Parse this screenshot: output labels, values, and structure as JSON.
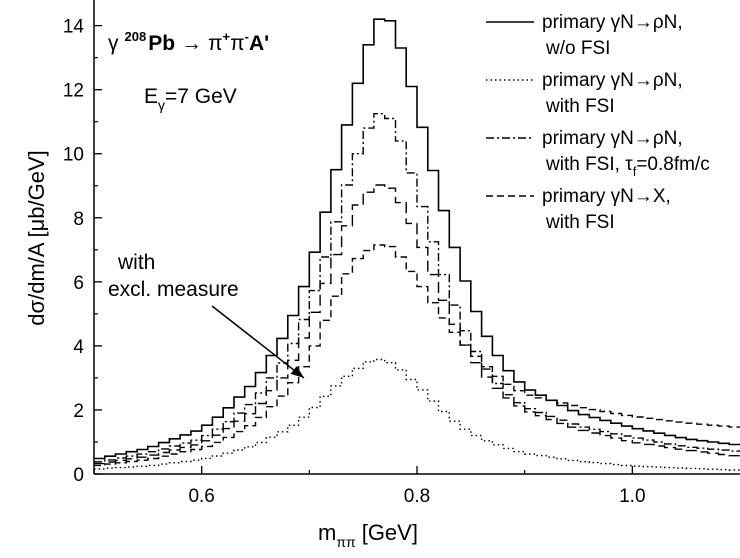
{
  "chart_data": {
    "type": "line",
    "title": "",
    "xlabel": "m",
    "xlabel_sub": "ππ",
    "xlabel_unit": "[GeV]",
    "ylabel": "dσ/dm/A [μb/GeV]",
    "xlim": [
      0.5,
      1.1
    ],
    "ylim": [
      0,
      14.8
    ],
    "x_ticks": [
      0.6,
      0.8,
      1.0
    ],
    "x_tick_labels": [
      "0.6",
      "0.8",
      "1.0"
    ],
    "y_ticks": [
      0,
      2,
      4,
      6,
      8,
      10,
      12,
      14
    ],
    "y_tick_labels": [
      "0",
      "2",
      "4",
      "6",
      "8",
      "10",
      "12",
      "14"
    ],
    "grid": false,
    "legend_position": "top-right",
    "reaction": {
      "gamma": "γ",
      "mass_number": "208",
      "nucleus": "Pb",
      "arrow": "→",
      "pi": "π",
      "plus": "+",
      "minus": "-",
      "residual": "A'"
    },
    "energy_label": {
      "E": "E",
      "sub": "γ",
      "value": "=7 GeV"
    },
    "annotation": {
      "line1": "with",
      "line2": "excl. measure",
      "arrow_to": [
        0.695,
        3.0
      ]
    },
    "peak_x": 0.77,
    "series": [
      {
        "name_line1": "primary γN→ρN,",
        "name_line2": "w/o FSI",
        "dash": "solid",
        "x": [
          0.5,
          0.55,
          0.6,
          0.62,
          0.65,
          0.68,
          0.7,
          0.72,
          0.74,
          0.76,
          0.77,
          0.78,
          0.8,
          0.82,
          0.84,
          0.86,
          0.88,
          0.9,
          0.95,
          1.0,
          1.05,
          1.1
        ],
        "values": [
          0.45,
          0.8,
          1.4,
          1.9,
          2.9,
          4.5,
          6.3,
          8.8,
          11.6,
          14.0,
          14.4,
          13.9,
          11.5,
          8.8,
          6.5,
          4.6,
          3.4,
          2.7,
          1.9,
          1.45,
          1.1,
          0.9
        ]
      },
      {
        "name_line1": "primary γN→ρN,",
        "name_line2": "with FSI",
        "dash": "dotted",
        "x": [
          0.5,
          0.55,
          0.6,
          0.62,
          0.65,
          0.68,
          0.7,
          0.72,
          0.74,
          0.76,
          0.77,
          0.78,
          0.8,
          0.82,
          0.84,
          0.86,
          0.88,
          0.9,
          0.95,
          1.0,
          1.05,
          1.1
        ],
        "values": [
          0.15,
          0.25,
          0.45,
          0.6,
          0.9,
          1.4,
          1.9,
          2.6,
          3.2,
          3.6,
          3.55,
          3.4,
          2.8,
          2.1,
          1.5,
          1.1,
          0.85,
          0.65,
          0.4,
          0.25,
          0.18,
          0.12
        ]
      },
      {
        "name_line1": "primary γN→ρN,",
        "name_line2": "with FSI, τ",
        "name_sub": "f",
        "name_line2_end": "=0.8fm/c",
        "dash": "dashdot",
        "x": [
          0.5,
          0.55,
          0.6,
          0.62,
          0.65,
          0.68,
          0.7,
          0.72,
          0.74,
          0.76,
          0.77,
          0.78,
          0.8,
          0.82,
          0.84,
          0.86,
          0.88,
          0.9,
          0.95,
          1.0,
          1.05,
          1.1
        ],
        "values": [
          0.35,
          0.65,
          1.1,
          1.5,
          2.3,
          3.7,
          5.2,
          7.3,
          9.6,
          11.2,
          11.3,
          10.9,
          8.9,
          6.7,
          4.8,
          3.5,
          2.6,
          2.1,
          1.5,
          1.15,
          0.85,
          0.7
        ]
      },
      {
        "name_line1": "primary γN→X,",
        "name_line2": "with FSI",
        "dash": "dashed",
        "x": [
          0.5,
          0.55,
          0.6,
          0.62,
          0.65,
          0.68,
          0.7,
          0.72,
          0.74,
          0.76,
          0.77,
          0.78,
          0.8,
          0.82,
          0.84,
          0.86,
          0.88,
          0.9,
          0.95,
          1.0,
          1.05,
          1.1
        ],
        "values": [
          0.25,
          0.45,
          0.8,
          1.05,
          1.6,
          2.6,
          3.6,
          5.2,
          6.6,
          7.1,
          7.2,
          7.0,
          6.1,
          5.1,
          4.2,
          3.5,
          2.9,
          2.5,
          2.1,
          1.8,
          1.6,
          1.45
        ]
      },
      {
        "name_line1": "",
        "name_line2": "",
        "dash": "longdash",
        "in_legend": false,
        "x": [
          0.5,
          0.55,
          0.6,
          0.62,
          0.65,
          0.68,
          0.7,
          0.72,
          0.74,
          0.76,
          0.77,
          0.78,
          0.8,
          0.82,
          0.84,
          0.86,
          0.88,
          0.9,
          0.95,
          1.0,
          1.05,
          1.1
        ],
        "values": [
          0.3,
          0.55,
          0.95,
          1.3,
          2.0,
          3.2,
          4.6,
          6.4,
          8.2,
          9.0,
          9.05,
          8.8,
          7.5,
          5.8,
          4.3,
          3.2,
          2.5,
          2.0,
          1.4,
          1.0,
          0.75,
          0.55
        ]
      }
    ]
  }
}
